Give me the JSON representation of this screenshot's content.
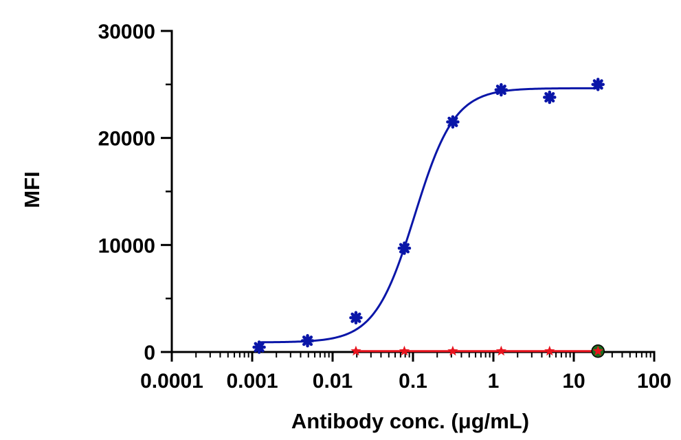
{
  "chart_data": {
    "type": "scatter",
    "xlabel": "Antibody conc. (μg/mL)",
    "ylabel": "MFI",
    "x_scale": "log",
    "xlim": [
      0.0001,
      100
    ],
    "ylim": [
      0,
      30000
    ],
    "x_ticks": [
      {
        "value": 0.0001,
        "label": "0.0001"
      },
      {
        "value": 0.001,
        "label": "0.001"
      },
      {
        "value": 0.01,
        "label": "0.01"
      },
      {
        "value": 0.1,
        "label": "0.1"
      },
      {
        "value": 1,
        "label": "1"
      },
      {
        "value": 10,
        "label": "10"
      },
      {
        "value": 100,
        "label": "100"
      }
    ],
    "y_ticks": [
      {
        "value": 0,
        "label": "0"
      },
      {
        "value": 10000,
        "label": "10000"
      },
      {
        "value": 20000,
        "label": "20000"
      },
      {
        "value": 30000,
        "label": "30000"
      }
    ],
    "grid": false,
    "legend": "none",
    "series": [
      {
        "color": "#0a16a8",
        "marker": "asterisk",
        "x": [
          0.00122,
          0.00488,
          0.0195,
          0.0781,
          0.3125,
          1.25,
          5,
          20
        ],
        "y": [
          450,
          1050,
          3200,
          9700,
          21500,
          24500,
          23800,
          25000
        ],
        "fit": {
          "bottom": 900,
          "top": 24650,
          "ec50": 0.105,
          "hill": 1.75
        }
      },
      {
        "color": "#e8141e",
        "marker": "star",
        "x": [
          0.0195,
          0.0781,
          0.3125,
          1.25,
          5,
          20
        ],
        "y": [
          80,
          80,
          80,
          80,
          80,
          80
        ]
      },
      {
        "color": "#1e6b1e",
        "marker": "circle",
        "x": [
          20
        ],
        "y": [
          80
        ]
      }
    ]
  }
}
